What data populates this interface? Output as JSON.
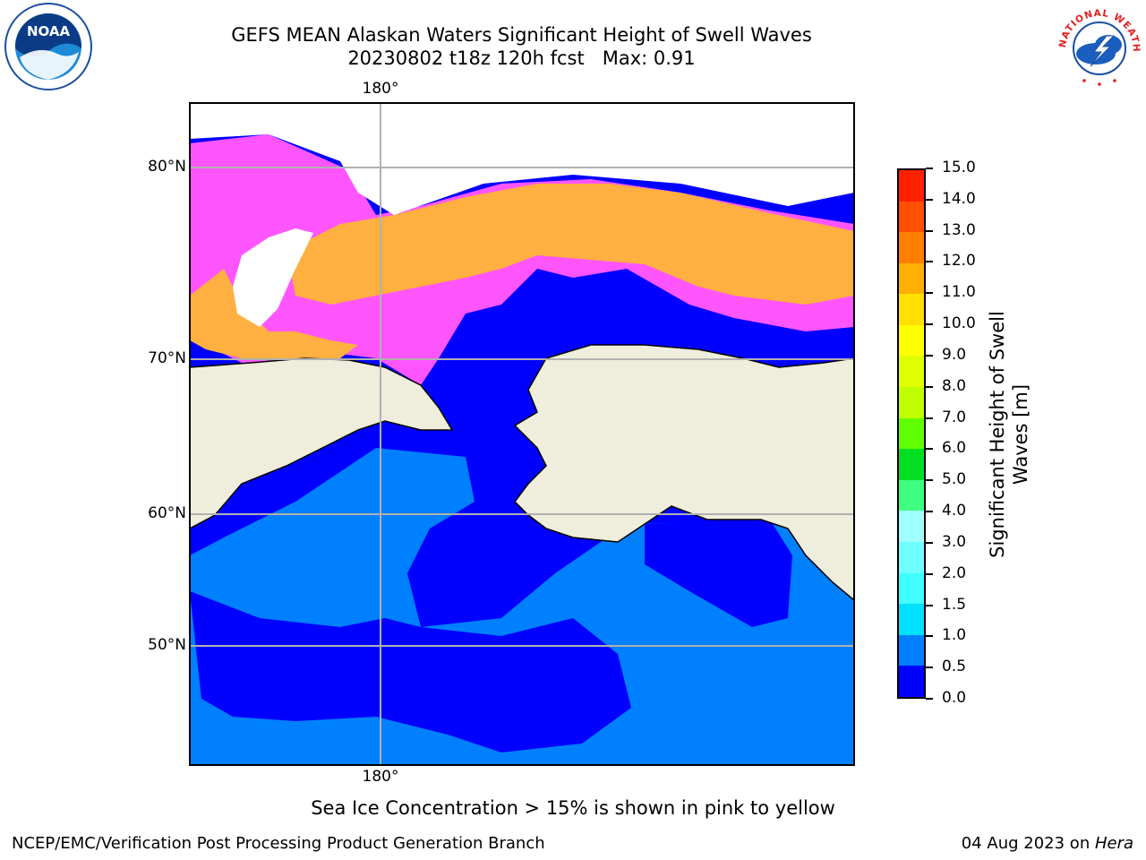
{
  "header": {
    "title": "GEFS MEAN Alaskan Waters Significant Height of Swell Waves",
    "subtitle": "20230802 t18z 120h fcst   Max: 0.91"
  },
  "map": {
    "lat_labels": [
      "80°N",
      "70°N",
      "60°N",
      "50°N"
    ],
    "lon_label_top": "180°",
    "lon_label_bottom": "180°",
    "colors": {
      "land": "#efeddc",
      "sea_low": "#0000ff",
      "sea_mid": "#0080ff",
      "ice_pink": "#ff55ff",
      "ice_orange": "#ffb040",
      "grid": "#b0b0b0"
    }
  },
  "colorbar": {
    "title": "Significant Height of Swell Waves [m]",
    "ticks": [
      "0.0",
      "0.5",
      "1.0",
      "1.5",
      "2.0",
      "3.0",
      "4.0",
      "5.0",
      "6.0",
      "7.0",
      "8.0",
      "9.0",
      "10.0",
      "11.0",
      "12.0",
      "13.0",
      "14.0",
      "15.0"
    ],
    "colors": [
      "#0000ff",
      "#0080ff",
      "#00e0ff",
      "#40ffff",
      "#70ffff",
      "#a0ffff",
      "#40ff80",
      "#00e020",
      "#60ff00",
      "#c0ff00",
      "#e0ff00",
      "#ffff00",
      "#ffe000",
      "#ffb000",
      "#ff8000",
      "#ff5000",
      "#ff2000",
      "#ff0000"
    ]
  },
  "footnote": "Sea Ice Concentration > 15% is shown in pink to yellow",
  "footer": {
    "left": "NCEP/EMC/Verification Post Processing Product Generation Branch",
    "right_date": "04 Aug 2023 on ",
    "right_host": "Hera"
  },
  "logos": {
    "noaa": "NOAA",
    "nws_ring": "NATIONAL WEATHER SERVICE"
  }
}
